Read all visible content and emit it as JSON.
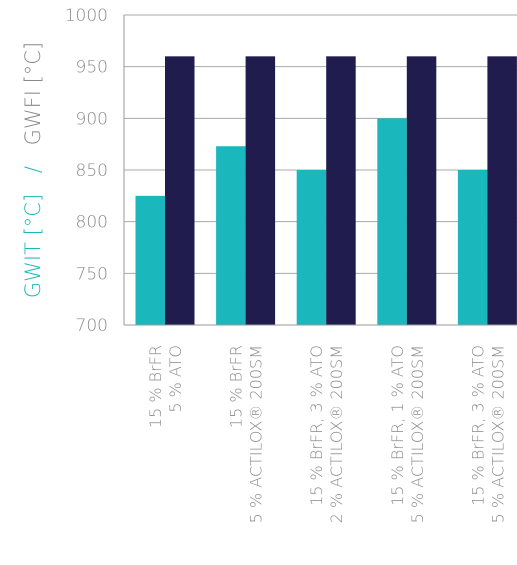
{
  "chart_data": {
    "type": "bar",
    "ylabel_parts": [
      "GWIT [°C]",
      "/",
      "GWFI [°C]"
    ],
    "ylabel_colors": [
      "#1ab7bd",
      "#1ab7bd",
      "#8a8a8a"
    ],
    "ylim": [
      700,
      1000
    ],
    "yticks": [
      700,
      750,
      800,
      850,
      900,
      950,
      1000
    ],
    "grid": true,
    "categories": [
      [
        "15 % BrFR",
        "5 % ATO"
      ],
      [
        "15 % BrFR",
        "5 % ACTILOX® 200SM"
      ],
      [
        "15 % BrFR, 3 % ATO",
        "2 % ACTILOX® 200SM"
      ],
      [
        "15 % BrFR, 1 % ATO",
        "5 % ACTILOX® 200SM"
      ],
      [
        "15 % BrFR, 3 % ATO",
        "5 % ACTILOX® 200SM"
      ]
    ],
    "series": [
      {
        "color": "#1ab7bd",
        "values": [
          825,
          873,
          850,
          900,
          850
        ]
      },
      {
        "color": "#211c4e",
        "values": [
          960,
          960,
          960,
          960,
          960
        ]
      }
    ]
  }
}
